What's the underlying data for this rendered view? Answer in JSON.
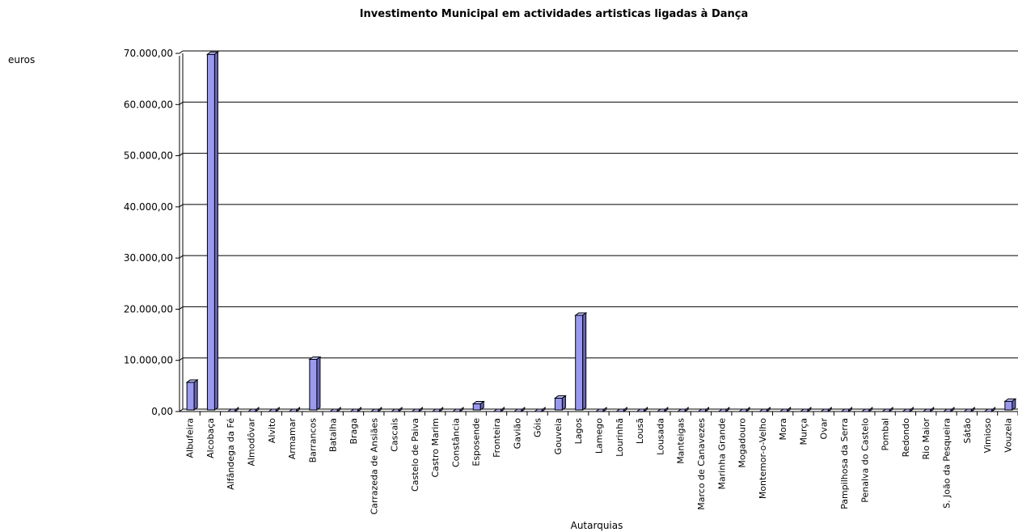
{
  "chart_data": {
    "type": "bar",
    "title": "Investimento Municipal em actividades artisticas ligadas à Dança",
    "unit_label": "euros",
    "xlabel": "Autarquias",
    "ylim": [
      0,
      70000
    ],
    "yticks": [
      {
        "value": 0,
        "label": "0,00"
      },
      {
        "value": 10000,
        "label": "10.000,00"
      },
      {
        "value": 20000,
        "label": "20.000,00"
      },
      {
        "value": 30000,
        "label": "30.000,00"
      },
      {
        "value": 40000,
        "label": "40.000,00"
      },
      {
        "value": 50000,
        "label": "50.000,00"
      },
      {
        "value": 60000,
        "label": "60.000,00"
      },
      {
        "value": 70000,
        "label": "70.000,00"
      }
    ],
    "grid": true,
    "bar_color": "#9999ee",
    "categories": [
      "Albufeira",
      "Alcobaça",
      "Alfândega da Fé",
      "Almodôvar",
      "Alvito",
      "Armamar",
      "Barrancos",
      "Batalha",
      "Braga",
      "Carrazeda de Ansiães",
      "Cascais",
      "Castelo de Paiva",
      "Castro Marim",
      "Constância",
      "Esposende",
      "Fronteira",
      "Gavião",
      "Góis",
      "Gouveia",
      "Lagos",
      "Lamego",
      "Lourinhã",
      "Lousã",
      "Lousada",
      "Manteigas",
      "Marco de Canavezes",
      "Marinha Grande",
      "Mogadouro",
      "Montemor-o-Velho",
      "Mora",
      "Murça",
      "Ovar",
      "Pampilhosa da Serra",
      "Penalva do Castelo",
      "Pombal",
      "Redondo",
      "Rio Maior",
      "S. João da Pesqueira",
      "Sátão",
      "Vimioso",
      "Vouzela"
    ],
    "values": [
      5700,
      69800,
      0,
      0,
      0,
      0,
      10200,
      0,
      0,
      0,
      0,
      0,
      0,
      0,
      1500,
      0,
      0,
      0,
      2600,
      18800,
      0,
      0,
      0,
      0,
      0,
      0,
      0,
      0,
      0,
      0,
      0,
      0,
      0,
      0,
      0,
      0,
      0,
      0,
      0,
      0,
      2000
    ]
  }
}
